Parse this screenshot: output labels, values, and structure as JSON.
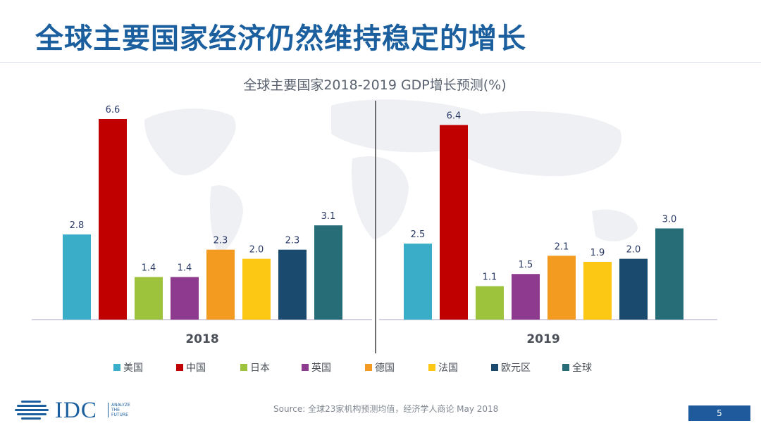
{
  "slide": {
    "title": "全球主要国家经济仍然维持稳定的增长",
    "source": "Source: 全球23家机构预测均值，经济学人商论 May 2018",
    "page_number": "5"
  },
  "logo": {
    "name": "IDC",
    "tagline": "ANALYZE\nTHE\nFUTURE"
  },
  "chart_data": {
    "type": "bar",
    "title": "全球主要国家2018-2019 GDP增长预测(%)",
    "xlabel": "",
    "ylabel": "",
    "ylim": [
      0,
      7
    ],
    "categories": [
      "2018",
      "2019"
    ],
    "series": [
      {
        "name": "美国",
        "color": "#3aaec9",
        "values": [
          2.8,
          2.5
        ],
        "labels": [
          "2.8",
          "2.5"
        ]
      },
      {
        "name": "中国",
        "color": "#c00000",
        "values": [
          6.6,
          6.4
        ],
        "labels": [
          "6.6",
          "6.4"
        ]
      },
      {
        "name": "日本",
        "color": "#9dc23b",
        "values": [
          1.4,
          1.1
        ],
        "labels": [
          "1.4",
          "1.1"
        ]
      },
      {
        "name": "英国",
        "color": "#8e3a8e",
        "values": [
          1.4,
          1.5
        ],
        "labels": [
          "1.4",
          "1.5"
        ]
      },
      {
        "name": "德国",
        "color": "#f39a21",
        "values": [
          2.3,
          2.1
        ],
        "labels": [
          "2.3",
          "2.1"
        ]
      },
      {
        "name": "法国",
        "color": "#fcc813",
        "values": [
          2.0,
          1.9
        ],
        "labels": [
          "2.0",
          "1.9"
        ]
      },
      {
        "name": "欧元区",
        "color": "#1b4a6f",
        "values": [
          2.3,
          2.0
        ],
        "labels": [
          "2.3",
          "2.0"
        ]
      },
      {
        "name": "全球",
        "color": "#276d78",
        "values": [
          3.1,
          3.0
        ],
        "labels": [
          "3.1",
          "3.0"
        ]
      }
    ],
    "legend_position": "bottom",
    "grid": false
  },
  "colors": {
    "title": "#1b5f9e",
    "page_box": "#1e5a9c",
    "label": "#2a3a66"
  }
}
